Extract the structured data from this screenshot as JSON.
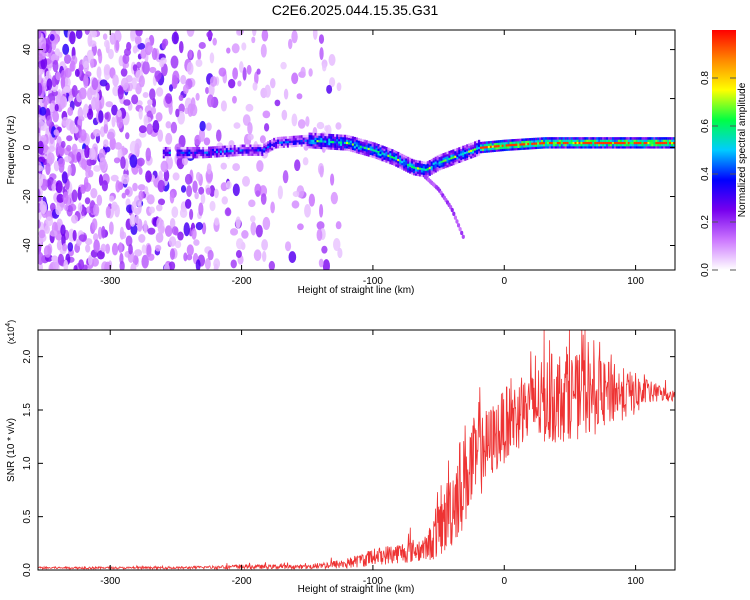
{
  "title": "C2E6.2025.044.15.35.G31",
  "chart_data": [
    {
      "type": "heatmap",
      "name": "spectrogram",
      "xlabel": "Height of straight line (km)",
      "ylabel": "Frequency (Hz)",
      "xlim": [
        -355,
        130
      ],
      "ylim": [
        -50,
        48
      ],
      "xticks": [
        -300,
        -200,
        -100,
        0,
        100
      ],
      "yticks": [
        -40,
        -20,
        0,
        20,
        40
      ],
      "colorbar": {
        "label": "Normalized spectral amplitude",
        "range": [
          0,
          1
        ],
        "ticks": [
          0.0,
          0.2,
          0.4,
          0.6,
          0.8
        ],
        "ticklabels": [
          "0.0",
          "0.2",
          "0.4",
          "0.6",
          "0.8"
        ],
        "colors": [
          "#ffffff",
          "#cc77ff",
          "#7700ee",
          "#0000ff",
          "#00ccff",
          "#00ff44",
          "#ffff00",
          "#ff8800",
          "#ff0000"
        ]
      },
      "signal_track": {
        "x": [
          -260,
          -230,
          -200,
          -185,
          -175,
          -150,
          -120,
          -100,
          -85,
          -70,
          -60,
          -50,
          -40,
          -30,
          -20,
          0,
          30,
          60,
          90,
          130
        ],
        "y": [
          -2,
          -2,
          -1,
          -1,
          2,
          3,
          2,
          -1,
          -4,
          -8,
          -9,
          -6,
          -4,
          -2,
          0,
          1,
          2,
          2,
          2,
          2
        ]
      },
      "chirp_branch": {
        "x": [
          -60,
          -50,
          -40,
          -30
        ],
        "y": [
          -12,
          -17,
          -25,
          -38
        ]
      }
    },
    {
      "type": "line",
      "name": "snr",
      "xlabel": "Height of straight line (km)",
      "ylabel": "SNR (10 * v/v)",
      "yscale_label": "(x10",
      "yscale_exp": "4",
      "yscale_close": ")",
      "xlim": [
        -355,
        130
      ],
      "ylim": [
        0,
        2.25
      ],
      "xticks": [
        -300,
        -200,
        -100,
        0,
        100
      ],
      "yticks": [
        0.0,
        0.5,
        1.0,
        1.5,
        2.0
      ],
      "yticklabels": [
        "0.0",
        "0.5",
        "1.0",
        "1.5",
        "2.0"
      ],
      "color": "#ee3333",
      "envelope": {
        "x": [
          -355,
          -250,
          -200,
          -150,
          -120,
          -100,
          -80,
          -60,
          -50,
          -40,
          -30,
          -20,
          -10,
          0,
          10,
          20,
          30,
          40,
          50,
          60,
          70,
          80,
          90,
          100,
          110,
          120,
          130
        ],
        "mean": [
          0.02,
          0.02,
          0.03,
          0.03,
          0.06,
          0.12,
          0.16,
          0.2,
          0.35,
          0.6,
          0.9,
          1.05,
          1.2,
          1.35,
          1.45,
          1.5,
          1.58,
          1.62,
          1.63,
          1.62,
          1.62,
          1.65,
          1.65,
          1.65,
          1.66,
          1.65,
          1.63
        ],
        "spread": [
          0.01,
          0.01,
          0.02,
          0.02,
          0.05,
          0.08,
          0.1,
          0.12,
          0.25,
          0.4,
          0.5,
          0.4,
          0.35,
          0.35,
          0.35,
          0.35,
          0.4,
          0.45,
          0.4,
          0.4,
          0.35,
          0.3,
          0.25,
          0.2,
          0.12,
          0.08,
          0.05
        ]
      }
    }
  ]
}
